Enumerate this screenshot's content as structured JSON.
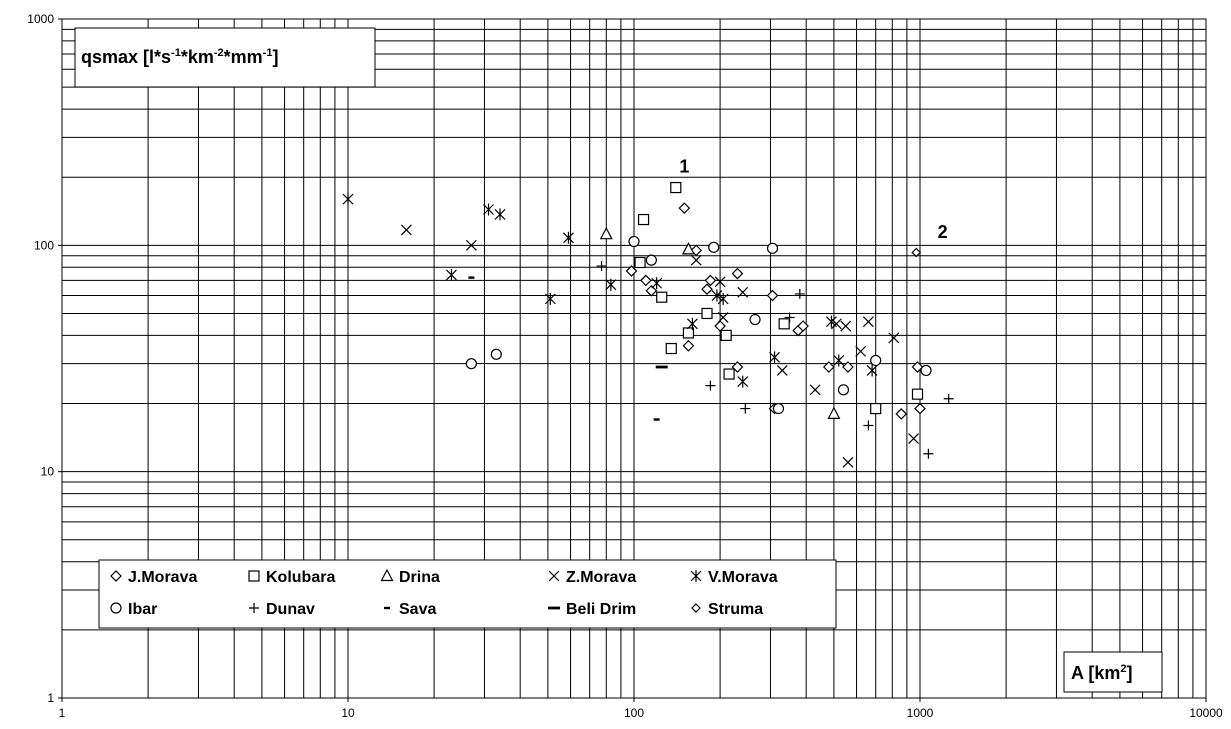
{
  "chart_data": {
    "type": "scatter",
    "ylabel": "qsmax  [l*s-1*km-2*mm-1]",
    "ylabel_parts": {
      "pre": "qsmax  [l*s",
      "e1": "-1",
      "mid1": "*km",
      "e2": "-2",
      "mid2": "*mm",
      "e3": "-1",
      "post": "]"
    },
    "xlabel": "A [km2]",
    "xlabel_parts": {
      "pre": "A [km",
      "e1": "2",
      "post": "]"
    },
    "x_scale": "log",
    "y_scale": "log",
    "xlim": [
      1,
      10000
    ],
    "ylim": [
      1,
      1000
    ],
    "x_ticks": [
      "1",
      "10",
      "100",
      "1000",
      "10000"
    ],
    "y_ticks": [
      "1",
      "10",
      "100",
      "1000"
    ],
    "grid": true,
    "legend_position": "bottom-left",
    "annotations": [
      {
        "text": "1",
        "x": 150,
        "y": 210
      },
      {
        "text": "2",
        "x": 1200,
        "y": 108
      }
    ],
    "series": [
      {
        "name": "J.Morava",
        "marker": "diamond",
        "points": [
          [
            150,
            146
          ],
          [
            165,
            95
          ],
          [
            185,
            70
          ],
          [
            200,
            44
          ],
          [
            230,
            75
          ],
          [
            110,
            70
          ],
          [
            115,
            63
          ],
          [
            180,
            64
          ],
          [
            230,
            29
          ],
          [
            305,
            60
          ],
          [
            375,
            42
          ],
          [
            480,
            29
          ],
          [
            560,
            29
          ],
          [
            1000,
            19
          ],
          [
            155,
            36
          ],
          [
            310,
            19
          ],
          [
            980,
            29
          ],
          [
            860,
            18
          ],
          [
            390,
            44
          ],
          [
            98,
            77
          ]
        ]
      },
      {
        "name": "Kolubara",
        "marker": "square",
        "points": [
          [
            140,
            180
          ],
          [
            108,
            130
          ],
          [
            105,
            84
          ],
          [
            125,
            59
          ],
          [
            135,
            35
          ],
          [
            180,
            50
          ],
          [
            155,
            41
          ],
          [
            210,
            40
          ],
          [
            215,
            27
          ],
          [
            335,
            45
          ],
          [
            700,
            19
          ],
          [
            980,
            22
          ]
        ]
      },
      {
        "name": "Drina",
        "marker": "triangle",
        "points": [
          [
            80,
            112
          ],
          [
            155,
            96
          ],
          [
            500,
            18
          ]
        ]
      },
      {
        "name": "Z.Morava",
        "marker": "x",
        "points": [
          [
            16,
            117
          ],
          [
            27,
            100
          ],
          [
            165,
            86
          ],
          [
            200,
            69
          ],
          [
            240,
            62
          ],
          [
            205,
            48
          ],
          [
            330,
            28
          ],
          [
            430,
            23
          ],
          [
            510,
            45
          ],
          [
            550,
            44
          ],
          [
            620,
            34
          ],
          [
            660,
            46
          ],
          [
            810,
            39
          ],
          [
            560,
            11
          ],
          [
            950,
            14
          ]
        ]
      },
      {
        "name": "V.Morava",
        "marker": "asterisk",
        "points": [
          [
            10,
            160
          ],
          [
            31,
            144
          ],
          [
            34,
            137
          ],
          [
            23,
            74
          ],
          [
            51,
            58
          ],
          [
            59,
            108
          ],
          [
            83,
            67
          ],
          [
            120,
            68
          ],
          [
            160,
            45
          ],
          [
            195,
            60
          ],
          [
            205,
            58
          ],
          [
            240,
            25
          ],
          [
            310,
            32
          ],
          [
            490,
            46
          ],
          [
            520,
            31
          ],
          [
            680,
            28
          ]
        ]
      },
      {
        "name": "Ibar",
        "marker": "circle",
        "points": [
          [
            27,
            30
          ],
          [
            33,
            33
          ],
          [
            100,
            104
          ],
          [
            115,
            86
          ],
          [
            190,
            98
          ],
          [
            305,
            97
          ],
          [
            265,
            47
          ],
          [
            320,
            19
          ],
          [
            540,
            23
          ],
          [
            700,
            31
          ],
          [
            1050,
            28
          ]
        ]
      },
      {
        "name": "Dunav",
        "marker": "plus",
        "points": [
          [
            77,
            81
          ],
          [
            185,
            24
          ],
          [
            245,
            19
          ],
          [
            380,
            61
          ],
          [
            350,
            48
          ],
          [
            660,
            16
          ],
          [
            1070,
            12
          ],
          [
            1260,
            21
          ]
        ]
      },
      {
        "name": "Sava",
        "marker": "dash",
        "points": [
          [
            27,
            72
          ],
          [
            120,
            17
          ]
        ]
      },
      {
        "name": "Beli Drim",
        "marker": "bar",
        "points": [
          [
            125,
            29
          ]
        ]
      },
      {
        "name": "Struma",
        "marker": "small-diamond",
        "points": [
          [
            970,
            93
          ]
        ]
      }
    ]
  }
}
